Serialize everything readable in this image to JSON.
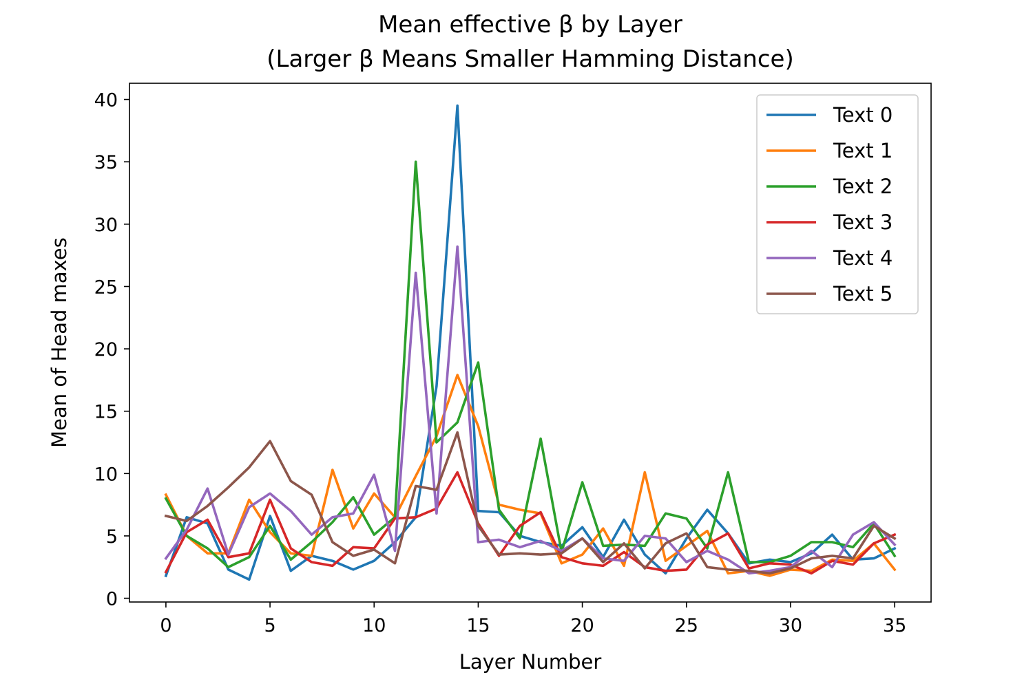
{
  "chart_data": {
    "type": "line",
    "title_line1": "Mean effective β by Layer",
    "title_line2": "(Larger β Means Smaller Hamming Distance)",
    "xlabel": "Layer Number",
    "ylabel": "Mean of Head maxes",
    "xlim": [
      -1.75,
      36.75
    ],
    "ylim": [
      -0.3,
      41.3
    ],
    "xticks": [
      0,
      5,
      10,
      15,
      20,
      25,
      30,
      35
    ],
    "yticks": [
      0,
      5,
      10,
      15,
      20,
      25,
      30,
      35,
      40
    ],
    "legend_position": "top-right",
    "x": [
      0,
      1,
      2,
      3,
      4,
      5,
      6,
      7,
      8,
      9,
      10,
      11,
      12,
      13,
      14,
      15,
      16,
      17,
      18,
      19,
      20,
      21,
      22,
      23,
      24,
      25,
      26,
      27,
      28,
      29,
      30,
      31,
      32,
      33,
      34,
      35
    ],
    "series": [
      {
        "name": "Text 0",
        "color": "#1f77b4",
        "values": [
          1.8,
          6.5,
          6.0,
          2.3,
          1.5,
          6.6,
          2.2,
          3.4,
          3.0,
          2.3,
          3.0,
          4.5,
          6.5,
          17.0,
          39.5,
          7.0,
          6.9,
          5.0,
          4.5,
          4.2,
          5.7,
          3.3,
          6.3,
          3.5,
          2.0,
          4.8,
          7.1,
          5.2,
          2.8,
          3.1,
          2.9,
          3.6,
          5.1,
          3.1,
          3.2,
          4.0
        ]
      },
      {
        "name": "Text 1",
        "color": "#ff7f0e",
        "values": [
          8.3,
          5.0,
          3.6,
          3.6,
          7.9,
          5.3,
          3.6,
          3.4,
          10.3,
          5.6,
          8.4,
          6.5,
          9.8,
          13.0,
          17.9,
          13.8,
          7.5,
          7.1,
          6.8,
          2.8,
          3.5,
          5.6,
          2.6,
          10.1,
          3.0,
          4.2,
          5.4,
          2.0,
          2.2,
          1.8,
          2.3,
          2.2,
          3.1,
          3.0,
          4.4,
          2.3
        ]
      },
      {
        "name": "Text 2",
        "color": "#2ca02c",
        "values": [
          8.0,
          5.0,
          4.0,
          2.5,
          3.3,
          5.8,
          3.1,
          4.5,
          6.1,
          8.1,
          5.1,
          6.5,
          35.0,
          12.5,
          14.1,
          18.9,
          7.1,
          4.8,
          12.8,
          3.7,
          9.3,
          4.2,
          4.3,
          4.2,
          6.8,
          6.4,
          4.0,
          10.1,
          2.9,
          2.9,
          3.4,
          4.5,
          4.5,
          4.1,
          6.0,
          3.4
        ]
      },
      {
        "name": "Text 3",
        "color": "#d62728",
        "values": [
          2.1,
          5.3,
          6.3,
          3.3,
          3.6,
          7.9,
          4.0,
          2.9,
          2.6,
          4.1,
          4.0,
          6.4,
          6.5,
          7.2,
          10.1,
          6.0,
          3.4,
          5.8,
          6.9,
          3.3,
          2.8,
          2.6,
          3.7,
          2.5,
          2.2,
          2.3,
          4.3,
          5.2,
          2.4,
          2.8,
          2.7,
          2.0,
          3.0,
          2.7,
          4.4,
          5.1
        ]
      },
      {
        "name": "Text 4",
        "color": "#9467bd",
        "values": [
          3.2,
          5.5,
          8.8,
          3.5,
          7.3,
          8.4,
          7.0,
          5.1,
          6.5,
          6.8,
          9.9,
          3.8,
          26.1,
          6.8,
          28.2,
          4.5,
          4.7,
          4.1,
          4.6,
          3.8,
          4.8,
          3.2,
          3.0,
          5.0,
          4.8,
          2.9,
          3.8,
          3.1,
          2.0,
          2.2,
          2.5,
          3.8,
          2.5,
          5.1,
          6.1,
          4.3
        ]
      },
      {
        "name": "Text 5",
        "color": "#8c564b",
        "values": [
          6.6,
          6.2,
          7.4,
          8.9,
          10.5,
          12.6,
          9.4,
          8.3,
          4.5,
          3.4,
          3.9,
          2.8,
          9.0,
          8.7,
          13.3,
          5.8,
          3.5,
          3.6,
          3.5,
          3.6,
          4.8,
          2.9,
          4.4,
          2.4,
          4.4,
          5.2,
          2.5,
          2.3,
          2.2,
          2.0,
          2.4,
          3.2,
          3.4,
          3.2,
          5.8,
          4.8
        ]
      }
    ]
  }
}
